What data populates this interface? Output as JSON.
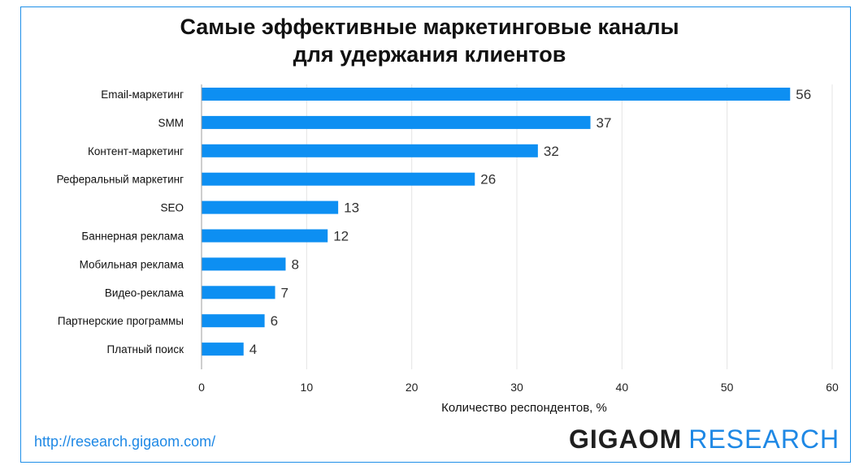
{
  "header": {
    "title_line1": "Самые эффективные маркетинговые каналы",
    "title_line2": "для удержания клиентов"
  },
  "footer": {
    "source_url": "http://research.gigaom.com/",
    "logo_part1": "GIGAOM",
    "logo_part2": "RESEARCH"
  },
  "colors": {
    "bar": "#0d8ff2",
    "frame": "#1e8fe8",
    "link": "#1e88e5"
  },
  "chart_data": {
    "type": "bar",
    "orientation": "horizontal",
    "title": "Самые эффективные маркетинговые каналы для удержания клиентов",
    "xlabel": "Количество респондентов, %",
    "ylabel": "",
    "xlim": [
      0,
      60
    ],
    "xticks": [
      "0",
      "10",
      "20",
      "30",
      "40",
      "50",
      "60"
    ],
    "grid": true,
    "categories": [
      "Email-маркетинг",
      "SMM",
      "Контент-маркетинг",
      "Реферальный маркетинг",
      "SEO",
      "Баннерная реклама",
      "Мобильная реклама",
      "Видео-реклама",
      "Партнерские программы",
      "Платный поиск"
    ],
    "values": [
      56,
      37,
      32,
      26,
      13,
      12,
      8,
      7,
      6,
      4
    ]
  }
}
